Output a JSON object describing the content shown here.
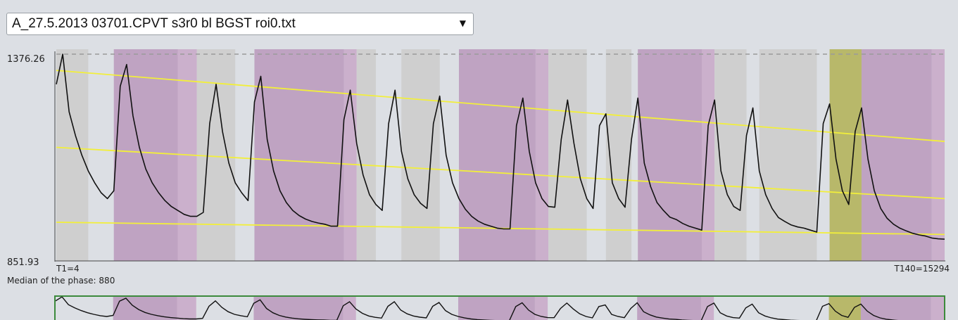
{
  "file_select": {
    "value": "A_27.5.2013 03701.CPVT s3r0 bl BGST roi0.txt",
    "arrow": "▼"
  },
  "colors": {
    "background": "#dcdfe4",
    "band_gray": "#cfcfcf",
    "band_purple": "#bfa3c2",
    "band_purple_light": "#cbb0cc",
    "band_olive": "#b8b86a",
    "trend_line": "#f2ef3a",
    "signal": "#111111",
    "nav_border": "#3c8a3c"
  },
  "chart_data": {
    "type": "line",
    "title": "",
    "ylim": [
      851.93,
      1376.26
    ],
    "y_tick_labels": {
      "max": "1376.26",
      "min": "851.93"
    },
    "x_labels": {
      "start": "T1=4",
      "end": "T140=15294"
    },
    "annotation": "Median of the phase: 880",
    "x_range": [
      1,
      140
    ],
    "bands": [
      {
        "x0": 1,
        "x1": 6,
        "kind": "gray"
      },
      {
        "x0": 10,
        "x1": 20,
        "kind": "purple"
      },
      {
        "x0": 20,
        "x1": 23,
        "kind": "purple_light"
      },
      {
        "x0": 23,
        "x1": 29,
        "kind": "gray"
      },
      {
        "x0": 32,
        "x1": 46,
        "kind": "purple"
      },
      {
        "x0": 46,
        "x1": 48,
        "kind": "purple_light"
      },
      {
        "x0": 48,
        "x1": 51,
        "kind": "gray"
      },
      {
        "x0": 55,
        "x1": 61,
        "kind": "gray"
      },
      {
        "x0": 64,
        "x1": 76,
        "kind": "purple"
      },
      {
        "x0": 76,
        "x1": 78,
        "kind": "purple_light"
      },
      {
        "x0": 78,
        "x1": 84,
        "kind": "gray"
      },
      {
        "x0": 87,
        "x1": 91,
        "kind": "gray"
      },
      {
        "x0": 92,
        "x1": 102,
        "kind": "purple"
      },
      {
        "x0": 102,
        "x1": 104,
        "kind": "purple_light"
      },
      {
        "x0": 104,
        "x1": 109,
        "kind": "gray"
      },
      {
        "x0": 111,
        "x1": 120,
        "kind": "gray"
      },
      {
        "x0": 122,
        "x1": 127,
        "kind": "olive"
      },
      {
        "x0": 127,
        "x1": 138,
        "kind": "purple"
      },
      {
        "x0": 138,
        "x1": 140,
        "kind": "purple_light"
      }
    ],
    "series": [
      {
        "values": [
          [
            1,
            1300
          ],
          [
            2,
            1376
          ],
          [
            3,
            1230
          ],
          [
            4,
            1170
          ],
          [
            5,
            1120
          ],
          [
            6,
            1080
          ],
          [
            7,
            1050
          ],
          [
            8,
            1025
          ],
          [
            9,
            1010
          ],
          [
            10,
            1030
          ],
          [
            11,
            1295
          ],
          [
            12,
            1350
          ],
          [
            13,
            1220
          ],
          [
            14,
            1140
          ],
          [
            15,
            1085
          ],
          [
            16,
            1050
          ],
          [
            17,
            1025
          ],
          [
            18,
            1005
          ],
          [
            19,
            990
          ],
          [
            20,
            980
          ],
          [
            21,
            970
          ],
          [
            22,
            965
          ],
          [
            23,
            965
          ],
          [
            24,
            975
          ],
          [
            25,
            1200
          ],
          [
            26,
            1300
          ],
          [
            27,
            1180
          ],
          [
            28,
            1100
          ],
          [
            29,
            1050
          ],
          [
            30,
            1025
          ],
          [
            31,
            1005
          ],
          [
            32,
            1255
          ],
          [
            33,
            1320
          ],
          [
            34,
            1160
          ],
          [
            35,
            1080
          ],
          [
            36,
            1030
          ],
          [
            37,
            1000
          ],
          [
            38,
            980
          ],
          [
            39,
            967
          ],
          [
            40,
            958
          ],
          [
            41,
            952
          ],
          [
            42,
            948
          ],
          [
            43,
            945
          ],
          [
            44,
            940
          ],
          [
            45,
            940
          ],
          [
            46,
            1210
          ],
          [
            47,
            1285
          ],
          [
            48,
            1150
          ],
          [
            49,
            1070
          ],
          [
            50,
            1020
          ],
          [
            51,
            995
          ],
          [
            52,
            980
          ],
          [
            53,
            1200
          ],
          [
            54,
            1285
          ],
          [
            55,
            1130
          ],
          [
            56,
            1060
          ],
          [
            57,
            1020
          ],
          [
            58,
            998
          ],
          [
            59,
            985
          ],
          [
            60,
            1200
          ],
          [
            61,
            1270
          ],
          [
            62,
            1120
          ],
          [
            63,
            1050
          ],
          [
            64,
            1010
          ],
          [
            65,
            983
          ],
          [
            66,
            965
          ],
          [
            67,
            953
          ],
          [
            68,
            945
          ],
          [
            69,
            940
          ],
          [
            70,
            935
          ],
          [
            71,
            933
          ],
          [
            72,
            933
          ],
          [
            73,
            1195
          ],
          [
            74,
            1265
          ],
          [
            75,
            1130
          ],
          [
            76,
            1050
          ],
          [
            77,
            1010
          ],
          [
            78,
            990
          ],
          [
            79,
            988
          ],
          [
            80,
            1160
          ],
          [
            81,
            1260
          ],
          [
            82,
            1150
          ],
          [
            83,
            1060
          ],
          [
            84,
            1010
          ],
          [
            85,
            985
          ],
          [
            86,
            1195
          ],
          [
            87,
            1225
          ],
          [
            88,
            1050
          ],
          [
            89,
            1010
          ],
          [
            90,
            988
          ],
          [
            91,
            1160
          ],
          [
            92,
            1265
          ],
          [
            93,
            1100
          ],
          [
            94,
            1040
          ],
          [
            95,
            1000
          ],
          [
            96,
            980
          ],
          [
            97,
            963
          ],
          [
            98,
            957
          ],
          [
            99,
            947
          ],
          [
            100,
            940
          ],
          [
            101,
            935
          ],
          [
            102,
            930
          ],
          [
            103,
            1195
          ],
          [
            104,
            1260
          ],
          [
            105,
            1080
          ],
          [
            106,
            1020
          ],
          [
            107,
            990
          ],
          [
            108,
            980
          ],
          [
            109,
            1170
          ],
          [
            110,
            1240
          ],
          [
            111,
            1080
          ],
          [
            112,
            1020
          ],
          [
            113,
            985
          ],
          [
            114,
            962
          ],
          [
            115,
            952
          ],
          [
            116,
            943
          ],
          [
            117,
            938
          ],
          [
            118,
            935
          ],
          [
            119,
            930
          ],
          [
            120,
            925
          ],
          [
            121,
            1200
          ],
          [
            122,
            1250
          ],
          [
            123,
            1110
          ],
          [
            124,
            1030
          ],
          [
            125,
            995
          ],
          [
            126,
            1180
          ],
          [
            127,
            1240
          ],
          [
            128,
            1110
          ],
          [
            129,
            1030
          ],
          [
            130,
            985
          ],
          [
            131,
            960
          ],
          [
            132,
            945
          ],
          [
            133,
            935
          ],
          [
            134,
            928
          ],
          [
            135,
            922
          ],
          [
            136,
            918
          ],
          [
            137,
            915
          ],
          [
            138,
            910
          ],
          [
            139,
            908
          ],
          [
            140,
            907
          ]
        ]
      }
    ],
    "trend_lines": [
      {
        "x0": 1,
        "y0": 1335,
        "x1": 140,
        "y1": 1155
      },
      {
        "x0": 1,
        "y0": 1140,
        "x1": 140,
        "y1": 1010
      },
      {
        "x0": 1,
        "y0": 950,
        "x1": 140,
        "y1": 919
      }
    ],
    "max_guide": 1376.26
  }
}
